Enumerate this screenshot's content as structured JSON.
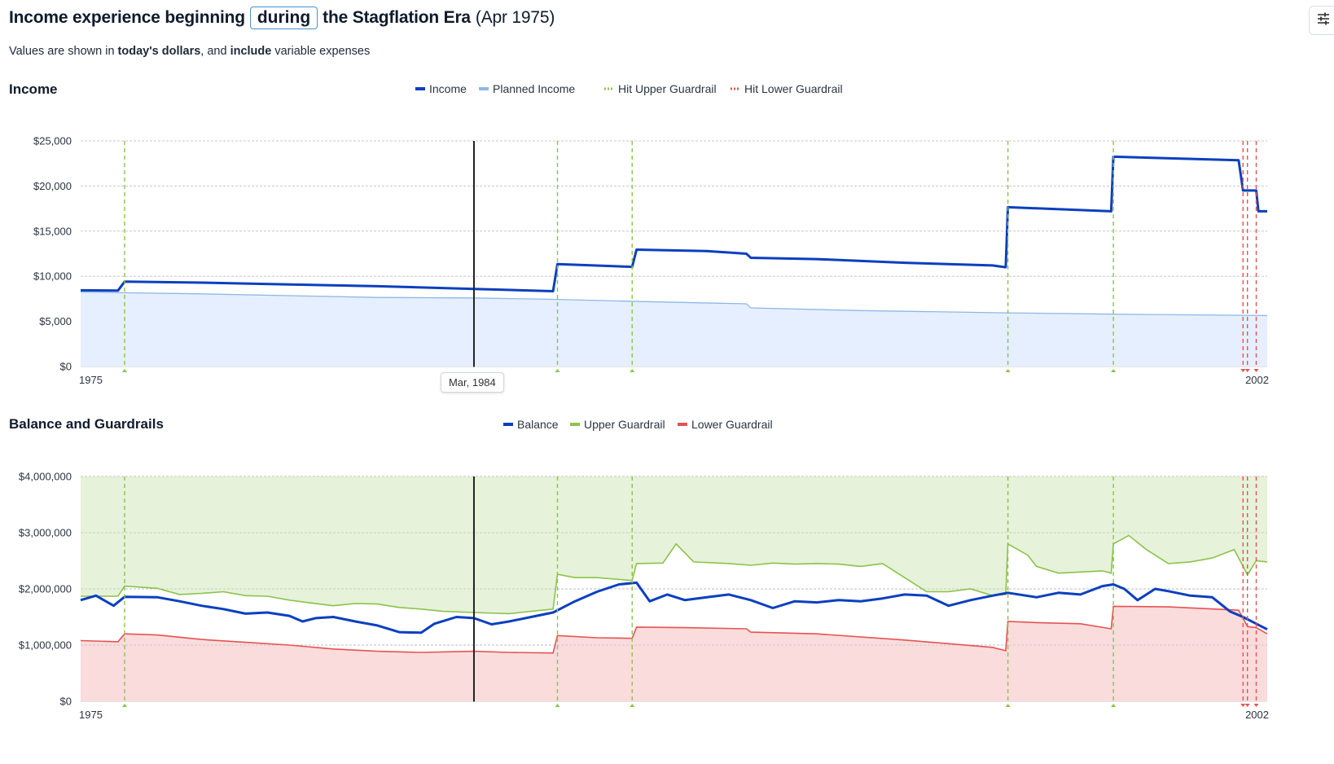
{
  "header": {
    "title_prefix": "Income experience beginning",
    "title_button": "during",
    "title_suffix": "the Stagflation Era",
    "title_date": "(Apr 1975)",
    "subtitle_1": "Values are shown in ",
    "subtitle_bold_1": "today's dollars",
    "subtitle_2": ", and ",
    "subtitle_bold_2": "include",
    "subtitle_3": " variable expenses",
    "settings_icon": "sliders-icon"
  },
  "colors": {
    "income": "#0a3fbf",
    "planned_income": "#8fb7e6",
    "planned_fill": "#e6efff",
    "upper": "#8bc34a",
    "upper_fill": "#e6f2d9",
    "lower": "#e65252",
    "lower_fill": "#fadcdc",
    "marker": "#222222"
  },
  "cursor_label": "Mar, 1984",
  "chart_data": [
    {
      "type": "line",
      "title": "Income",
      "legend": [
        "Income",
        "Planned Income",
        "Hit Upper Guardrail",
        "Hit Lower Guardrail"
      ],
      "x_start_label": "1975",
      "x_end_label": "2002",
      "x_range": [
        1975.25,
        2002.25
      ],
      "ylim": [
        0,
        25000
      ],
      "yticks": [
        "$0",
        "$5,000",
        "$10,000",
        "$15,000",
        "$20,000",
        "$25,000"
      ],
      "ytick_values": [
        0,
        5000,
        10000,
        15000,
        20000,
        25000
      ],
      "series": [
        {
          "name": "Income",
          "points": [
            [
              1975.25,
              8450
            ],
            [
              1976.1,
              8420
            ],
            [
              1976.25,
              9400
            ],
            [
              1978,
              9300
            ],
            [
              1980,
              9100
            ],
            [
              1982,
              8900
            ],
            [
              1984.2,
              8600
            ],
            [
              1986,
              8350
            ],
            [
              1986.1,
              11350
            ],
            [
              1987.8,
              11050
            ],
            [
              1987.9,
              12950
            ],
            [
              1989.5,
              12800
            ],
            [
              1990.4,
              12500
            ],
            [
              1990.5,
              12050
            ],
            [
              1992,
              11900
            ],
            [
              1994,
              11500
            ],
            [
              1996,
              11200
            ],
            [
              1996.3,
              11000
            ],
            [
              1996.35,
              17650
            ],
            [
              1998.7,
              17200
            ],
            [
              1998.75,
              23250
            ],
            [
              2001.6,
              22850
            ],
            [
              2001.7,
              19500
            ],
            [
              2002.0,
              19500
            ],
            [
              2002.05,
              17200
            ],
            [
              2002.25,
              17200
            ]
          ]
        },
        {
          "name": "Planned Income",
          "points": [
            [
              1975.25,
              8250
            ],
            [
              1978,
              8050
            ],
            [
              1980,
              7850
            ],
            [
              1982,
              7650
            ],
            [
              1984.2,
              7600
            ],
            [
              1986,
              7450
            ],
            [
              1988,
              7200
            ],
            [
              1990.4,
              6950
            ],
            [
              1990.5,
              6500
            ],
            [
              1993,
              6200
            ],
            [
              1996.3,
              5950
            ],
            [
              1998.75,
              5800
            ],
            [
              2002.25,
              5650
            ]
          ]
        }
      ],
      "upper_hits": [
        1976.25,
        1986.1,
        1987.8,
        1996.35,
        1998.75
      ],
      "lower_hits": [
        2001.7,
        2001.8,
        2002.0
      ],
      "cursor": 1984.2
    },
    {
      "type": "line",
      "title": "Balance and Guardrails",
      "legend": [
        "Balance",
        "Upper Guardrail",
        "Lower Guardrail"
      ],
      "x_start_label": "1975",
      "x_end_label": "2002",
      "x_range": [
        1975.25,
        2002.25
      ],
      "ylim": [
        0,
        4000000
      ],
      "yticks": [
        "$0",
        "$1,000,000",
        "$2,000,000",
        "$3,000,000",
        "$4,000,000"
      ],
      "ytick_values": [
        0,
        1000000,
        2000000,
        3000000,
        4000000
      ],
      "series": [
        {
          "name": "Balance",
          "points": [
            [
              1975.25,
              1800000
            ],
            [
              1975.6,
              1880000
            ],
            [
              1976.0,
              1700000
            ],
            [
              1976.25,
              1860000
            ],
            [
              1977,
              1850000
            ],
            [
              1977.5,
              1780000
            ],
            [
              1978,
              1700000
            ],
            [
              1978.5,
              1640000
            ],
            [
              1979,
              1560000
            ],
            [
              1979.5,
              1580000
            ],
            [
              1980,
              1520000
            ],
            [
              1980.3,
              1420000
            ],
            [
              1980.6,
              1480000
            ],
            [
              1981,
              1500000
            ],
            [
              1981.5,
              1420000
            ],
            [
              1982,
              1350000
            ],
            [
              1982.5,
              1230000
            ],
            [
              1983,
              1220000
            ],
            [
              1983.3,
              1380000
            ],
            [
              1983.8,
              1500000
            ],
            [
              1984.2,
              1480000
            ],
            [
              1984.6,
              1370000
            ],
            [
              1985,
              1420000
            ],
            [
              1985.5,
              1500000
            ],
            [
              1986,
              1580000
            ],
            [
              1986.5,
              1780000
            ],
            [
              1987,
              1950000
            ],
            [
              1987.5,
              2080000
            ],
            [
              1987.9,
              2110000
            ],
            [
              1988.2,
              1780000
            ],
            [
              1988.6,
              1900000
            ],
            [
              1989,
              1800000
            ],
            [
              1989.5,
              1850000
            ],
            [
              1990,
              1900000
            ],
            [
              1990.5,
              1800000
            ],
            [
              1991,
              1660000
            ],
            [
              1991.5,
              1780000
            ],
            [
              1992,
              1760000
            ],
            [
              1992.5,
              1800000
            ],
            [
              1993,
              1780000
            ],
            [
              1993.5,
              1830000
            ],
            [
              1994,
              1900000
            ],
            [
              1994.5,
              1880000
            ],
            [
              1995,
              1700000
            ],
            [
              1995.5,
              1800000
            ],
            [
              1996,
              1880000
            ],
            [
              1996.35,
              1930000
            ],
            [
              1997,
              1850000
            ],
            [
              1997.5,
              1930000
            ],
            [
              1998,
              1900000
            ],
            [
              1998.5,
              2050000
            ],
            [
              1998.75,
              2080000
            ],
            [
              1999,
              2000000
            ],
            [
              1999.3,
              1800000
            ],
            [
              1999.7,
              2000000
            ],
            [
              2000,
              1960000
            ],
            [
              2000.5,
              1880000
            ],
            [
              2001,
              1850000
            ],
            [
              2001.4,
              1600000
            ],
            [
              2001.7,
              1500000
            ],
            [
              2002.0,
              1380000
            ],
            [
              2002.25,
              1280000
            ]
          ]
        },
        {
          "name": "Upper Guardrail",
          "points": [
            [
              1975.25,
              1870000
            ],
            [
              1976.1,
              1870000
            ],
            [
              1976.25,
              2050000
            ],
            [
              1977,
              2010000
            ],
            [
              1977.5,
              1900000
            ],
            [
              1978,
              1920000
            ],
            [
              1978.5,
              1950000
            ],
            [
              1979,
              1880000
            ],
            [
              1979.5,
              1870000
            ],
            [
              1980,
              1800000
            ],
            [
              1980.5,
              1750000
            ],
            [
              1981,
              1700000
            ],
            [
              1981.5,
              1740000
            ],
            [
              1982,
              1730000
            ],
            [
              1982.5,
              1670000
            ],
            [
              1983,
              1640000
            ],
            [
              1983.5,
              1600000
            ],
            [
              1984.2,
              1580000
            ],
            [
              1985,
              1560000
            ],
            [
              1985.5,
              1600000
            ],
            [
              1986,
              1640000
            ],
            [
              1986.1,
              2260000
            ],
            [
              1986.5,
              2200000
            ],
            [
              1987,
              2200000
            ],
            [
              1987.8,
              2150000
            ],
            [
              1987.9,
              2450000
            ],
            [
              1988.5,
              2460000
            ],
            [
              1988.8,
              2800000
            ],
            [
              1989.2,
              2480000
            ],
            [
              1990,
              2450000
            ],
            [
              1990.5,
              2420000
            ],
            [
              1991,
              2460000
            ],
            [
              1991.5,
              2440000
            ],
            [
              1992,
              2450000
            ],
            [
              1992.5,
              2440000
            ],
            [
              1993,
              2400000
            ],
            [
              1993.5,
              2450000
            ],
            [
              1994,
              2200000
            ],
            [
              1994.5,
              1950000
            ],
            [
              1995,
              1950000
            ],
            [
              1995.5,
              2000000
            ],
            [
              1996,
              1880000
            ],
            [
              1996.3,
              1900000
            ],
            [
              1996.35,
              2800000
            ],
            [
              1996.8,
              2600000
            ],
            [
              1997,
              2400000
            ],
            [
              1997.5,
              2280000
            ],
            [
              1998,
              2300000
            ],
            [
              1998.5,
              2320000
            ],
            [
              1998.7,
              2280000
            ],
            [
              1998.75,
              2800000
            ],
            [
              1999.1,
              2950000
            ],
            [
              1999.5,
              2700000
            ],
            [
              2000,
              2450000
            ],
            [
              2000.5,
              2480000
            ],
            [
              2001,
              2550000
            ],
            [
              2001.5,
              2700000
            ],
            [
              2001.8,
              2250000
            ],
            [
              2002.0,
              2500000
            ],
            [
              2002.25,
              2480000
            ]
          ]
        },
        {
          "name": "Lower Guardrail",
          "points": [
            [
              1975.25,
              1080000
            ],
            [
              1976.1,
              1060000
            ],
            [
              1976.25,
              1200000
            ],
            [
              1977,
              1180000
            ],
            [
              1978,
              1100000
            ],
            [
              1979,
              1050000
            ],
            [
              1980,
              1000000
            ],
            [
              1981,
              930000
            ],
            [
              1982,
              890000
            ],
            [
              1983,
              870000
            ],
            [
              1984.2,
              890000
            ],
            [
              1985,
              870000
            ],
            [
              1986,
              860000
            ],
            [
              1986.1,
              1170000
            ],
            [
              1987,
              1130000
            ],
            [
              1987.8,
              1120000
            ],
            [
              1987.9,
              1320000
            ],
            [
              1989,
              1310000
            ],
            [
              1990.4,
              1290000
            ],
            [
              1990.5,
              1230000
            ],
            [
              1992,
              1200000
            ],
            [
              1994,
              1090000
            ],
            [
              1996,
              960000
            ],
            [
              1996.3,
              900000
            ],
            [
              1996.35,
              1420000
            ],
            [
              1997,
              1400000
            ],
            [
              1998,
              1380000
            ],
            [
              1998.7,
              1290000
            ],
            [
              1998.75,
              1690000
            ],
            [
              2000,
              1680000
            ],
            [
              2001.6,
              1620000
            ],
            [
              2001.7,
              1480000
            ],
            [
              2001.8,
              1330000
            ],
            [
              2002.0,
              1310000
            ],
            [
              2002.25,
              1200000
            ]
          ]
        }
      ],
      "upper_hits": [
        1976.25,
        1986.1,
        1987.8,
        1996.35,
        1998.75
      ],
      "lower_hits": [
        2001.7,
        2001.8,
        2002.0
      ],
      "cursor": 1984.2
    }
  ]
}
